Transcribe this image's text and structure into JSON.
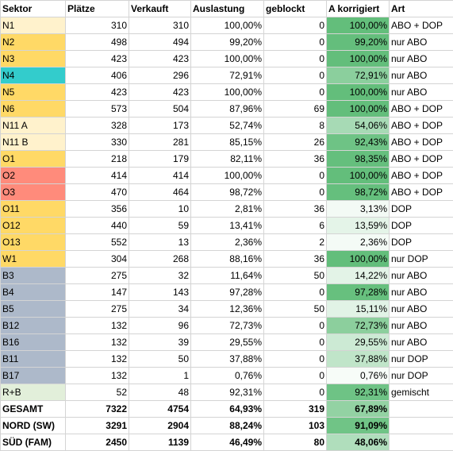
{
  "headers": [
    "Sektor",
    "Plätze",
    "Verkauft",
    "Auslastung",
    "geblockt",
    "A korrigiert",
    "Art"
  ],
  "colors": {
    "yellow": "#ffd966",
    "lightyellow": "#fff2cc",
    "teal": "#33cccc",
    "salmon": "#ff8b7b",
    "bluegray": "#adb9ca",
    "lightgreen": "#e2efda",
    "heat_low": "#f8fcf9",
    "heat_high": "#63be7b"
  },
  "rows": [
    {
      "sektor": "N1",
      "plaetze": "310",
      "verkauft": "310",
      "auslastung": "100,00%",
      "geblockt": "0",
      "korrigiert": "100,00%",
      "art": "ABO + DOP",
      "fill": "lightyellow",
      "k": 1.0
    },
    {
      "sektor": "N2",
      "plaetze": "498",
      "verkauft": "494",
      "auslastung": "99,20%",
      "geblockt": "0",
      "korrigiert": "99,20%",
      "art": "nur ABO",
      "fill": "yellow",
      "k": 0.992
    },
    {
      "sektor": "N3",
      "plaetze": "423",
      "verkauft": "423",
      "auslastung": "100,00%",
      "geblockt": "0",
      "korrigiert": "100,00%",
      "art": "nur ABO",
      "fill": "yellow",
      "k": 1.0
    },
    {
      "sektor": "N4",
      "plaetze": "406",
      "verkauft": "296",
      "auslastung": "72,91%",
      "geblockt": "0",
      "korrigiert": "72,91%",
      "art": "nur ABO",
      "fill": "teal",
      "k": 0.7291
    },
    {
      "sektor": "N5",
      "plaetze": "423",
      "verkauft": "423",
      "auslastung": "100,00%",
      "geblockt": "0",
      "korrigiert": "100,00%",
      "art": "nur ABO",
      "fill": "yellow",
      "k": 1.0
    },
    {
      "sektor": "N6",
      "plaetze": "573",
      "verkauft": "504",
      "auslastung": "87,96%",
      "geblockt": "69",
      "korrigiert": "100,00%",
      "art": "ABO + DOP",
      "fill": "yellow",
      "k": 1.0
    },
    {
      "sektor": "N11 A",
      "plaetze": "328",
      "verkauft": "173",
      "auslastung": "52,74%",
      "geblockt": "8",
      "korrigiert": "54,06%",
      "art": "ABO + DOP",
      "fill": "lightyellow",
      "k": 0.5406
    },
    {
      "sektor": "N11 B",
      "plaetze": "330",
      "verkauft": "281",
      "auslastung": "85,15%",
      "geblockt": "26",
      "korrigiert": "92,43%",
      "art": "ABO + DOP",
      "fill": "lightyellow",
      "k": 0.9243
    },
    {
      "sektor": "O1",
      "plaetze": "218",
      "verkauft": "179",
      "auslastung": "82,11%",
      "geblockt": "36",
      "korrigiert": "98,35%",
      "art": "ABO + DOP",
      "fill": "yellow",
      "k": 0.9835
    },
    {
      "sektor": "O2",
      "plaetze": "414",
      "verkauft": "414",
      "auslastung": "100,00%",
      "geblockt": "0",
      "korrigiert": "100,00%",
      "art": "ABO + DOP",
      "fill": "salmon",
      "k": 1.0
    },
    {
      "sektor": "O3",
      "plaetze": "470",
      "verkauft": "464",
      "auslastung": "98,72%",
      "geblockt": "0",
      "korrigiert": "98,72%",
      "art": "ABO + DOP",
      "fill": "salmon",
      "k": 0.9872
    },
    {
      "sektor": "O11",
      "plaetze": "356",
      "verkauft": "10",
      "auslastung": "2,81%",
      "geblockt": "36",
      "korrigiert": "3,13%",
      "art": "DOP",
      "fill": "yellow",
      "k": 0.0313
    },
    {
      "sektor": "O12",
      "plaetze": "440",
      "verkauft": "59",
      "auslastung": "13,41%",
      "geblockt": "6",
      "korrigiert": "13,59%",
      "art": "DOP",
      "fill": "yellow",
      "k": 0.1359
    },
    {
      "sektor": "O13",
      "plaetze": "552",
      "verkauft": "13",
      "auslastung": "2,36%",
      "geblockt": "2",
      "korrigiert": "2,36%",
      "art": "DOP",
      "fill": "yellow",
      "k": 0.0236
    },
    {
      "sektor": "W1",
      "plaetze": "304",
      "verkauft": "268",
      "auslastung": "88,16%",
      "geblockt": "36",
      "korrigiert": "100,00%",
      "art": "nur DOP",
      "fill": "yellow",
      "k": 1.0
    },
    {
      "sektor": "B3",
      "plaetze": "275",
      "verkauft": "32",
      "auslastung": "11,64%",
      "geblockt": "50",
      "korrigiert": "14,22%",
      "art": "nur ABO",
      "fill": "bluegray",
      "k": 0.1422
    },
    {
      "sektor": "B4",
      "plaetze": "147",
      "verkauft": "143",
      "auslastung": "97,28%",
      "geblockt": "0",
      "korrigiert": "97,28%",
      "art": "nur ABO",
      "fill": "bluegray",
      "k": 0.9728
    },
    {
      "sektor": "B5",
      "plaetze": "275",
      "verkauft": "34",
      "auslastung": "12,36%",
      "geblockt": "50",
      "korrigiert": "15,11%",
      "art": "nur ABO",
      "fill": "bluegray",
      "k": 0.1511
    },
    {
      "sektor": "B12",
      "plaetze": "132",
      "verkauft": "96",
      "auslastung": "72,73%",
      "geblockt": "0",
      "korrigiert": "72,73%",
      "art": "nur ABO",
      "fill": "bluegray",
      "k": 0.7273
    },
    {
      "sektor": "B16",
      "plaetze": "132",
      "verkauft": "39",
      "auslastung": "29,55%",
      "geblockt": "0",
      "korrigiert": "29,55%",
      "art": "nur ABO",
      "fill": "bluegray",
      "k": 0.2955
    },
    {
      "sektor": "B11",
      "plaetze": "132",
      "verkauft": "50",
      "auslastung": "37,88%",
      "geblockt": "0",
      "korrigiert": "37,88%",
      "art": "nur DOP",
      "fill": "bluegray",
      "k": 0.3788
    },
    {
      "sektor": "B17",
      "plaetze": "132",
      "verkauft": "1",
      "auslastung": "0,76%",
      "geblockt": "0",
      "korrigiert": "0,76%",
      "art": "nur DOP",
      "fill": "bluegray",
      "k": 0.0076
    },
    {
      "sektor": "R+B",
      "plaetze": "52",
      "verkauft": "48",
      "auslastung": "92,31%",
      "geblockt": "0",
      "korrigiert": "92,31%",
      "art": "gemischt",
      "fill": "lightgreen",
      "k": 0.9231
    },
    {
      "sektor": "GESAMT",
      "plaetze": "7322",
      "verkauft": "4754",
      "auslastung": "64,93%",
      "geblockt": "319",
      "korrigiert": "67,89%",
      "art": "",
      "fill": "none",
      "k": 0.6789,
      "bold": true
    },
    {
      "sektor": "NORD (SW)",
      "plaetze": "3291",
      "verkauft": "2904",
      "auslastung": "88,24%",
      "geblockt": "103",
      "korrigiert": "91,09%",
      "art": "",
      "fill": "none",
      "k": 0.9109,
      "bold": true
    },
    {
      "sektor": "SÜD (FAM)",
      "plaetze": "2450",
      "verkauft": "1139",
      "auslastung": "46,49%",
      "geblockt": "80",
      "korrigiert": "48,06%",
      "art": "",
      "fill": "none",
      "k": 0.4806,
      "bold": true
    }
  ]
}
